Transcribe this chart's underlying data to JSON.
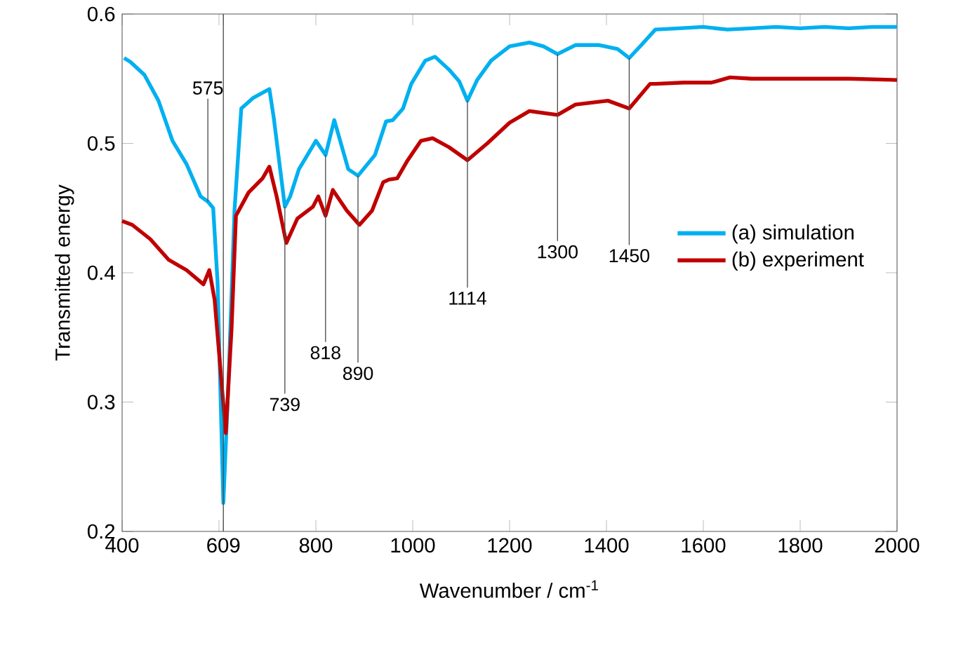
{
  "chart_data": {
    "type": "line",
    "xlabel": "Wavenumber / cm$^{-1}$",
    "ylabel": "Transmitted energy",
    "xlim": [
      400,
      2000
    ],
    "ylim": [
      0.2,
      0.6
    ],
    "xticks": [
      400,
      {
        "value": 600,
        "label": null
      },
      {
        "value": 609,
        "label": "609"
      },
      800,
      1000,
      1200,
      1400,
      1600,
      1800,
      2000
    ],
    "yticks": [
      0.2,
      0.3,
      0.4,
      0.5,
      0.6
    ],
    "legend": "right",
    "series": [
      {
        "name": "(a) simulation",
        "color": "#00b0f0",
        "x": [
          404,
          417,
          446,
          475,
          504,
          533,
          562,
          577,
          588,
          597,
          609,
          620,
          632,
          646,
          670,
          704,
          713,
          736,
          747,
          765,
          800,
          820,
          838,
          867,
          887,
          922,
          945,
          959,
          980,
          997,
          1026,
          1046,
          1075,
          1096,
          1113,
          1133,
          1162,
          1200,
          1241,
          1270,
          1299,
          1336,
          1385,
          1423,
          1447,
          1472,
          1501,
          1550,
          1600,
          1650,
          1700,
          1750,
          1800,
          1850,
          1900,
          1950,
          2000
        ],
        "values": [
          0.566,
          0.563,
          0.553,
          0.533,
          0.502,
          0.484,
          0.459,
          0.455,
          0.45,
          0.393,
          0.222,
          0.32,
          0.448,
          0.527,
          0.535,
          0.542,
          0.52,
          0.451,
          0.459,
          0.48,
          0.502,
          0.491,
          0.518,
          0.48,
          0.475,
          0.491,
          0.517,
          0.518,
          0.527,
          0.546,
          0.564,
          0.567,
          0.557,
          0.548,
          0.533,
          0.549,
          0.564,
          0.575,
          0.578,
          0.575,
          0.569,
          0.576,
          0.576,
          0.573,
          0.566,
          0.576,
          0.588,
          0.589,
          0.59,
          0.588,
          0.589,
          0.59,
          0.589,
          0.59,
          0.589,
          0.59,
          0.59
        ]
      },
      {
        "name": "(b) experiment",
        "color": "#c00000",
        "x": [
          400,
          421,
          458,
          496,
          533,
          568,
          580,
          591,
          614,
          626,
          635,
          661,
          690,
          704,
          719,
          739,
          762,
          794,
          805,
          820,
          835,
          864,
          890,
          916,
          939,
          951,
          968,
          988,
          1017,
          1041,
          1075,
          1113,
          1154,
          1200,
          1241,
          1299,
          1336,
          1403,
          1447,
          1490,
          1501,
          1560,
          1617,
          1655,
          1700,
          1800,
          1900,
          2000
        ],
        "values": [
          0.44,
          0.437,
          0.426,
          0.41,
          0.402,
          0.391,
          0.402,
          0.379,
          0.276,
          0.357,
          0.444,
          0.462,
          0.473,
          0.482,
          0.459,
          0.423,
          0.442,
          0.451,
          0.459,
          0.444,
          0.464,
          0.448,
          0.437,
          0.448,
          0.47,
          0.472,
          0.473,
          0.486,
          0.502,
          0.504,
          0.497,
          0.487,
          0.5,
          0.516,
          0.525,
          0.522,
          0.53,
          0.533,
          0.527,
          0.546,
          0.546,
          0.547,
          0.547,
          0.551,
          0.55,
          0.55,
          0.55,
          0.549
        ]
      }
    ],
    "annotations": [
      {
        "text": "575",
        "x": 577,
        "y": 0.455
      },
      {
        "text": "739",
        "x": 736,
        "y": 0.451
      },
      {
        "text": "818",
        "x": 820,
        "y": 0.491
      },
      {
        "text": "890",
        "x": 887,
        "y": 0.475
      },
      {
        "text": "1114",
        "x": 1113,
        "y": 0.533
      },
      {
        "text": "1300",
        "x": 1299,
        "y": 0.569
      },
      {
        "text": "1450",
        "x": 1447,
        "y": 0.566
      }
    ]
  }
}
